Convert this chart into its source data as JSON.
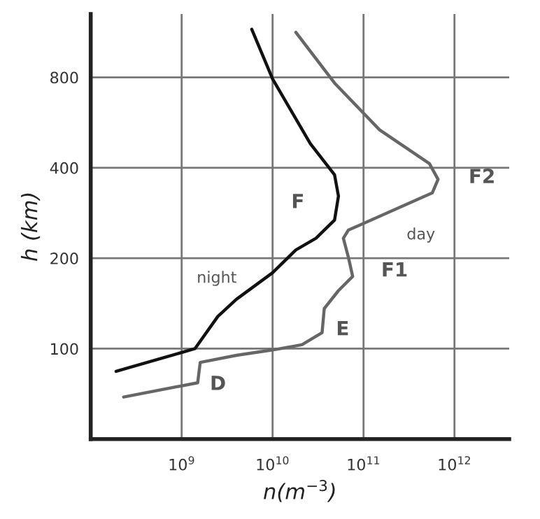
{
  "chart_data": {
    "type": "line",
    "xlabel": "n(m$^{−3}$)",
    "ylabel": "h (km)",
    "log": "xy",
    "grid": true,
    "legend": false,
    "xlim": [
      100000000.0,
      4000000000000.0
    ],
    "ylim": [
      50,
      1300
    ],
    "xticks": [
      {
        "value": 1000000000.0,
        "label": "10$^{9}$"
      },
      {
        "value": 10000000000.0,
        "label": "10$^{10}$"
      },
      {
        "value": 100000000000.0,
        "label": "10$^{11}$"
      },
      {
        "value": 1000000000000.0,
        "label": "10$^{12}$"
      }
    ],
    "yticks": [
      100,
      200,
      400,
      800
    ],
    "series": [
      {
        "color": "#111111",
        "x": [
          190000000.0,
          1400000000.0,
          2500000000.0,
          4000000000.0,
          10000000000.0,
          18000000000.0,
          30000000000.0,
          48000000000.0,
          53000000000.0,
          48000000000.0,
          26000000000.0,
          10000000000.0,
          5900000000.0
        ],
        "values": [
          84,
          100,
          128,
          146,
          179,
          213,
          233,
          268,
          322,
          379,
          481,
          790,
          1157
        ]
      },
      {
        "color": "#666666",
        "x": [
          230000000.0,
          1500000000.0,
          1600000000.0,
          4000000000.0,
          10000000000.0,
          21000000000.0,
          35000000000.0,
          37000000000.0,
          53000000000.0,
          76000000000.0,
          68000000000.0,
          60000000000.0,
          68000000000.0,
          570000000000.0,
          660000000000.0,
          530000000000.0,
          150000000000.0,
          48000000000.0,
          18000000000.0
        ],
        "values": [
          69,
          77,
          90,
          95,
          99,
          103,
          113,
          136,
          156,
          174,
          202,
          233,
          248,
          330,
          366,
          413,
          535,
          766,
          1130
        ]
      }
    ],
    "annotations": [
      "night",
      "day",
      "F",
      "F2",
      "F1",
      "E",
      "D"
    ]
  }
}
